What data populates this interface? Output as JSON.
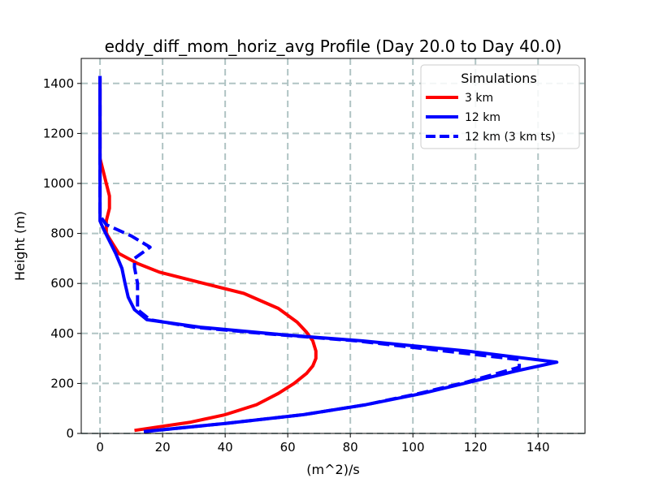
{
  "chart_data": {
    "type": "line",
    "title": "eddy_diff_mom_horiz_avg Profile (Day 20.0 to Day 40.0)",
    "xlabel": "(m^2)/s",
    "ylabel": "Height (m)",
    "xlim": [
      -6,
      155
    ],
    "ylim": [
      0,
      1500
    ],
    "xticks": [
      0,
      20,
      40,
      60,
      80,
      100,
      120,
      140
    ],
    "yticks": [
      0,
      200,
      400,
      600,
      800,
      1000,
      1200,
      1400
    ],
    "xtick_labels": [
      "0",
      "20",
      "40",
      "60",
      "80",
      "100",
      "120",
      "140"
    ],
    "ytick_labels": [
      "0",
      "200",
      "400",
      "600",
      "800",
      "1000",
      "1200",
      "1400"
    ],
    "grid": true,
    "legend": {
      "title": "Simulations",
      "placement": "top-right"
    },
    "series": [
      {
        "name": "3 km",
        "color": "#ff0000",
        "style": "solid",
        "points": [
          [
            11,
            12
          ],
          [
            18,
            25
          ],
          [
            29,
            45
          ],
          [
            40,
            75
          ],
          [
            50,
            115
          ],
          [
            57,
            160
          ],
          [
            62,
            200
          ],
          [
            66,
            240
          ],
          [
            68,
            270
          ],
          [
            69,
            300
          ],
          [
            69,
            330
          ],
          [
            68,
            370
          ],
          [
            66,
            405
          ],
          [
            63,
            445
          ],
          [
            57,
            500
          ],
          [
            46,
            560
          ],
          [
            30,
            610
          ],
          [
            19,
            645
          ],
          [
            12,
            680
          ],
          [
            6,
            720
          ],
          [
            4,
            760
          ],
          [
            2,
            800
          ],
          [
            2,
            850
          ],
          [
            3,
            900
          ],
          [
            3,
            950
          ],
          [
            2,
            1000
          ],
          [
            1,
            1050
          ],
          [
            0,
            1100
          ],
          [
            0,
            1150
          ],
          [
            0,
            1200
          ],
          [
            0,
            1420
          ]
        ]
      },
      {
        "name": "12 km",
        "color": "#0000ff",
        "style": "solid",
        "points": [
          [
            14,
            7
          ],
          [
            40,
            40
          ],
          [
            65,
            75
          ],
          [
            85,
            115
          ],
          [
            103,
            160
          ],
          [
            118,
            205
          ],
          [
            133,
            250
          ],
          [
            146,
            285
          ],
          [
            117,
            330
          ],
          [
            84,
            370
          ],
          [
            58,
            395
          ],
          [
            32,
            425
          ],
          [
            15,
            455
          ],
          [
            11,
            495
          ],
          [
            9,
            545
          ],
          [
            8,
            600
          ],
          [
            7,
            660
          ],
          [
            5,
            720
          ],
          [
            3,
            770
          ],
          [
            1,
            820
          ],
          [
            0,
            850
          ],
          [
            0,
            900
          ],
          [
            0,
            1000
          ],
          [
            0,
            1100
          ],
          [
            0,
            1200
          ],
          [
            0,
            1300
          ],
          [
            0,
            1430
          ]
        ]
      },
      {
        "name": "12 km (3 km ts)",
        "color": "#0000ff",
        "style": "dashed",
        "points": [
          [
            14,
            7
          ],
          [
            40,
            40
          ],
          [
            65,
            75
          ],
          [
            85,
            115
          ],
          [
            102,
            160
          ],
          [
            117,
            205
          ],
          [
            134,
            265
          ],
          [
            134,
            295
          ],
          [
            110,
            330
          ],
          [
            82,
            370
          ],
          [
            52,
            400
          ],
          [
            30,
            425
          ],
          [
            16,
            455
          ],
          [
            12,
            495
          ],
          [
            12,
            545
          ],
          [
            12,
            600
          ],
          [
            11,
            665
          ],
          [
            11,
            700
          ],
          [
            16,
            745
          ],
          [
            10,
            790
          ],
          [
            2,
            835
          ],
          [
            0,
            870
          ],
          [
            0,
            900
          ],
          [
            0,
            1000
          ],
          [
            0,
            1100
          ],
          [
            0,
            1200
          ],
          [
            0,
            1430
          ]
        ]
      }
    ]
  }
}
